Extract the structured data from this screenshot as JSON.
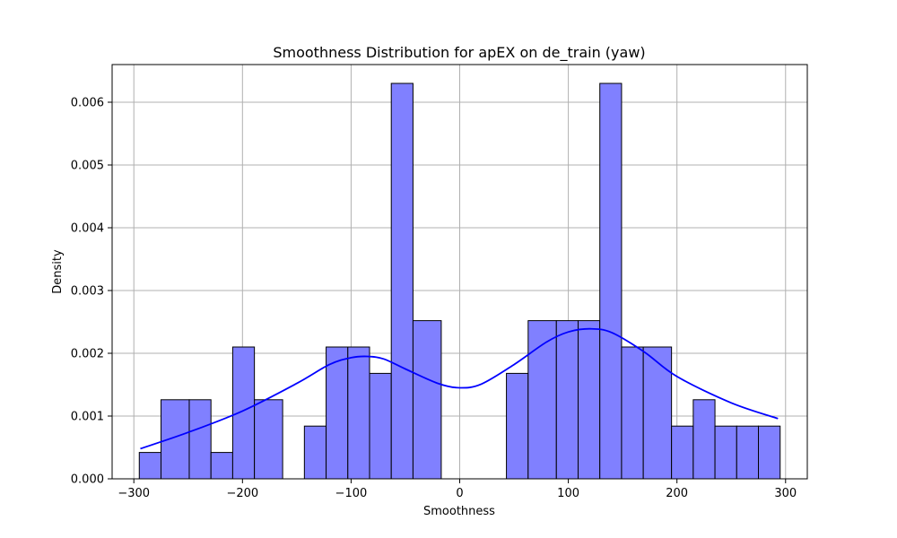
{
  "chart_data": {
    "type": "bar",
    "title": "Smoothness Distribution for apEX on de_train (yaw)",
    "xlabel": "Smoothness",
    "ylabel": "Density",
    "xlim": [
      -320,
      320
    ],
    "ylim": [
      0,
      0.0066
    ],
    "xticks": [
      -300,
      -200,
      -100,
      0,
      100,
      200,
      300
    ],
    "xtick_labels": [
      "−300",
      "−200",
      "−100",
      "0",
      "100",
      "200",
      "300"
    ],
    "yticks": [
      0,
      0.001,
      0.002,
      0.003,
      0.004,
      0.005,
      0.006
    ],
    "ytick_labels": [
      "0.000",
      "0.001",
      "0.002",
      "0.003",
      "0.004",
      "0.005",
      "0.006"
    ],
    "grid": true,
    "bar_color": "#8080ff",
    "bar_edge_color": "#000000",
    "kde_color": "#0000ff",
    "bins": [
      {
        "x0": -295,
        "x1": -275,
        "density": 0.00042
      },
      {
        "x0": -275,
        "x1": -249,
        "density": 0.00126
      },
      {
        "x0": -249,
        "x1": -229,
        "density": 0.00126
      },
      {
        "x0": -229,
        "x1": -209,
        "density": 0.00042
      },
      {
        "x0": -209,
        "x1": -189,
        "density": 0.0021
      },
      {
        "x0": -189,
        "x1": -163,
        "density": 0.00126
      },
      {
        "x0": -163,
        "x1": -143,
        "density": 0.0
      },
      {
        "x0": -143,
        "x1": -123,
        "density": 0.00084
      },
      {
        "x0": -123,
        "x1": -103,
        "density": 0.0021
      },
      {
        "x0": -103,
        "x1": -83,
        "density": 0.0021
      },
      {
        "x0": -83,
        "x1": -63,
        "density": 0.00168
      },
      {
        "x0": -63,
        "x1": -43,
        "density": 0.0063
      },
      {
        "x0": -43,
        "x1": -17,
        "density": 0.00252
      },
      {
        "x0": -17,
        "x1": 3,
        "density": 0.0
      },
      {
        "x0": 3,
        "x1": 23,
        "density": 0.0
      },
      {
        "x0": 23,
        "x1": 43,
        "density": 0.0
      },
      {
        "x0": 43,
        "x1": 63,
        "density": 0.00168
      },
      {
        "x0": 63,
        "x1": 89,
        "density": 0.00252
      },
      {
        "x0": 89,
        "x1": 109,
        "density": 0.00252
      },
      {
        "x0": 109,
        "x1": 129,
        "density": 0.00252
      },
      {
        "x0": 129,
        "x1": 149,
        "density": 0.0063
      },
      {
        "x0": 149,
        "x1": 169,
        "density": 0.0021
      },
      {
        "x0": 169,
        "x1": 195,
        "density": 0.0021
      },
      {
        "x0": 195,
        "x1": 215,
        "density": 0.00084
      },
      {
        "x0": 215,
        "x1": 235,
        "density": 0.00126
      },
      {
        "x0": 235,
        "x1": 255,
        "density": 0.00084
      },
      {
        "x0": 255,
        "x1": 275,
        "density": 0.00084
      },
      {
        "x0": 275,
        "x1": 295,
        "density": 0.00084
      }
    ],
    "kde": {
      "x": [
        -294,
        -250,
        -200,
        -150,
        -120,
        -100,
        -85,
        -70,
        -50,
        -20,
        0,
        20,
        50,
        80,
        100,
        120,
        140,
        170,
        200,
        250,
        293
      ],
      "y": [
        0.00048,
        0.00074,
        0.00108,
        0.00152,
        0.00182,
        0.00193,
        0.00195,
        0.00191,
        0.00175,
        0.00152,
        0.00145,
        0.00151,
        0.00182,
        0.00218,
        0.00234,
        0.00239,
        0.00233,
        0.00202,
        0.00163,
        0.00121,
        0.00096
      ]
    }
  }
}
